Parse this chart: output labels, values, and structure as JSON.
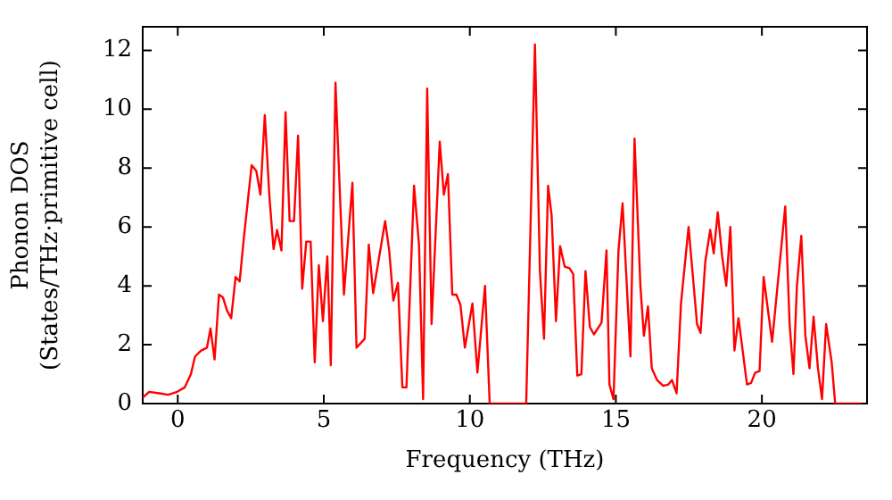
{
  "chart_data": {
    "type": "line",
    "xlabel": "Frequency (THz)",
    "ylabel": "Phonon DOS\n(States/THz·primitive cell)",
    "xlim": [
      -1.2,
      23.6
    ],
    "ylim": [
      0,
      12.8
    ],
    "xticks": [
      0,
      5,
      10,
      15,
      20
    ],
    "yticks": [
      0,
      2,
      4,
      6,
      8,
      10,
      12
    ],
    "grid": false,
    "legend": false,
    "marker": "none",
    "line_style": "solid",
    "series": [
      {
        "color": "#ff0000",
        "x": [
          -1.2,
          -0.98,
          -0.63,
          -0.33,
          -0.02,
          0.24,
          0.45,
          0.59,
          0.8,
          1.0,
          1.12,
          1.26,
          1.41,
          1.55,
          1.69,
          1.83,
          1.98,
          2.12,
          2.26,
          2.53,
          2.69,
          2.83,
          2.98,
          3.14,
          3.28,
          3.4,
          3.55,
          3.69,
          3.83,
          3.98,
          4.12,
          4.26,
          4.4,
          4.55,
          4.69,
          4.83,
          4.97,
          5.12,
          5.24,
          5.4,
          5.69,
          5.98,
          6.12,
          6.4,
          6.54,
          6.69,
          7.1,
          7.24,
          7.38,
          7.54,
          7.69,
          7.83,
          8.09,
          8.26,
          8.4,
          8.54,
          8.69,
          8.97,
          9.11,
          9.25,
          9.4,
          9.54,
          9.68,
          9.83,
          10.09,
          10.26,
          10.52,
          10.68,
          11.93,
          12.23,
          12.4,
          12.54,
          12.68,
          12.8,
          12.95,
          13.09,
          13.25,
          13.41,
          13.54,
          13.68,
          13.82,
          13.96,
          14.11,
          14.25,
          14.51,
          14.68,
          14.78,
          14.92,
          15.09,
          15.23,
          15.5,
          15.64,
          15.84,
          15.96,
          16.1,
          16.23,
          16.41,
          16.62,
          16.8,
          16.92,
          17.08,
          17.23,
          17.49,
          17.78,
          17.9,
          18.06,
          18.23,
          18.35,
          18.49,
          18.64,
          18.78,
          18.92,
          19.06,
          19.2,
          19.49,
          19.63,
          19.77,
          19.92,
          20.06,
          20.35,
          20.8,
          20.95,
          21.08,
          21.2,
          21.35,
          21.49,
          21.63,
          21.77,
          21.92,
          22.06,
          22.2,
          22.39,
          22.51,
          23.4
        ],
        "values": [
          0.2,
          0.4,
          0.35,
          0.3,
          0.4,
          0.55,
          1.0,
          1.6,
          1.8,
          1.9,
          2.55,
          1.5,
          3.7,
          3.6,
          3.15,
          2.9,
          4.3,
          4.15,
          5.6,
          8.1,
          7.9,
          7.1,
          9.8,
          7.0,
          5.25,
          5.9,
          5.2,
          9.9,
          6.2,
          6.2,
          9.1,
          3.9,
          5.5,
          5.5,
          1.4,
          4.7,
          2.8,
          5.0,
          1.3,
          10.9,
          3.7,
          7.5,
          1.9,
          2.2,
          5.4,
          3.75,
          6.2,
          5.2,
          3.5,
          4.1,
          0.55,
          0.55,
          7.4,
          5.4,
          0.15,
          10.7,
          2.7,
          8.9,
          7.1,
          7.8,
          3.7,
          3.7,
          3.35,
          1.9,
          3.4,
          1.05,
          4.0,
          0,
          0,
          12.2,
          4.5,
          2.2,
          7.4,
          6.4,
          2.8,
          5.35,
          4.65,
          4.6,
          4.4,
          0.95,
          1.0,
          4.5,
          2.6,
          2.35,
          2.75,
          5.2,
          0.65,
          0.15,
          5.2,
          6.8,
          1.6,
          9.0,
          4.0,
          2.3,
          3.3,
          1.2,
          0.8,
          0.6,
          0.65,
          0.8,
          0.35,
          3.4,
          6.0,
          2.7,
          2.4,
          4.8,
          5.9,
          5.1,
          6.5,
          5.0,
          4.0,
          6.0,
          1.8,
          2.9,
          0.65,
          0.7,
          1.05,
          1.1,
          4.3,
          2.1,
          6.7,
          2.7,
          1.0,
          4.0,
          5.7,
          2.3,
          1.2,
          2.95,
          1.2,
          0.15,
          2.7,
          1.4,
          0,
          0
        ]
      }
    ]
  }
}
